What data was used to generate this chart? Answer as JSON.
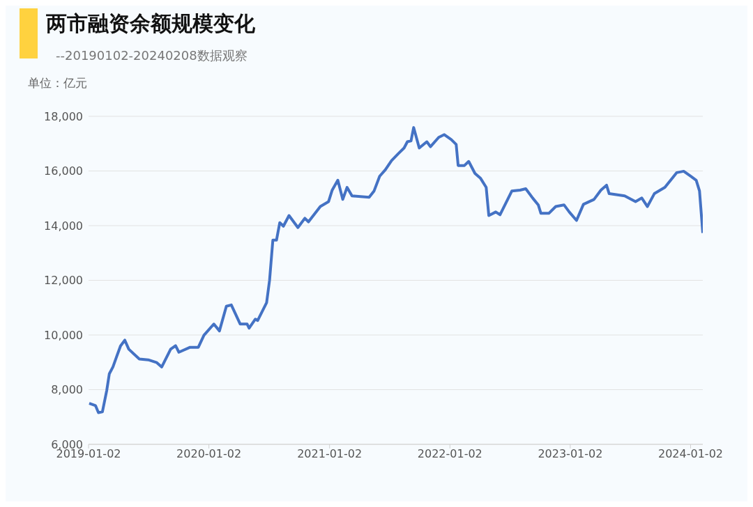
{
  "chart_data": {
    "type": "line",
    "title": "两市融资余额规模变化",
    "subtitle": "--20190102-20240208数据观察",
    "ylabel": "单位：亿元",
    "x": [
      "2019-01-04",
      "2019-01-23",
      "2019-02-01",
      "2019-02-13",
      "2019-02-26",
      "2019-03-06",
      "2019-03-17",
      "2019-03-27",
      "2019-04-09",
      "2019-04-22",
      "2019-05-04",
      "2019-06-05",
      "2019-07-02",
      "2019-07-28",
      "2019-08-12",
      "2019-09-08",
      "2019-09-23",
      "2019-10-03",
      "2019-11-06",
      "2019-12-01",
      "2019-12-18",
      "2020-01-17",
      "2020-02-03",
      "2020-02-24",
      "2020-03-10",
      "2020-04-06",
      "2020-04-27",
      "2020-05-03",
      "2020-05-22",
      "2020-05-29",
      "2020-06-25",
      "2020-07-04",
      "2020-07-14",
      "2020-07-25",
      "2020-08-04",
      "2020-08-15",
      "2020-09-01",
      "2020-09-28",
      "2020-10-19",
      "2020-10-30",
      "2020-12-05",
      "2020-12-30",
      "2021-01-10",
      "2021-01-27",
      "2021-02-11",
      "2021-02-24",
      "2021-03-11",
      "2021-05-02",
      "2021-05-17",
      "2021-06-03",
      "2021-06-20",
      "2021-07-09",
      "2021-07-30",
      "2021-08-16",
      "2021-08-26",
      "2021-09-06",
      "2021-09-14",
      "2021-10-01",
      "2021-10-24",
      "2021-11-04",
      "2021-11-29",
      "2021-12-16",
      "2022-01-06",
      "2022-01-21",
      "2022-01-27",
      "2022-02-15",
      "2022-02-28",
      "2022-03-19",
      "2022-04-05",
      "2022-04-22",
      "2022-04-30",
      "2022-05-21",
      "2022-06-03",
      "2022-07-09",
      "2022-08-03",
      "2022-08-20",
      "2022-09-10",
      "2022-09-27",
      "2022-10-05",
      "2022-10-29",
      "2022-11-19",
      "2022-12-14",
      "2022-12-30",
      "2023-01-21",
      "2023-02-11",
      "2023-03-15",
      "2023-04-05",
      "2023-04-22",
      "2023-04-30",
      "2023-06-16",
      "2023-07-19",
      "2023-08-07",
      "2023-08-24",
      "2023-09-14",
      "2023-10-16",
      "2023-11-21",
      "2023-12-12",
      "2024-01-02",
      "2024-01-19",
      "2024-01-29",
      "2024-02-08"
    ],
    "series": [
      {
        "color": "#4472c4",
        "values": [
          7500,
          7420,
          7160,
          7190,
          7960,
          8580,
          8830,
          9170,
          9600,
          9810,
          9480,
          9120,
          9090,
          8990,
          8830,
          9480,
          9610,
          9370,
          9550,
          9550,
          9990,
          10400,
          10150,
          11050,
          11100,
          10400,
          10400,
          10250,
          10580,
          10530,
          11180,
          12000,
          13470,
          13470,
          14110,
          13980,
          14370,
          13930,
          14270,
          14140,
          14700,
          14880,
          15300,
          15660,
          14960,
          15400,
          15090,
          15040,
          15270,
          15810,
          16040,
          16380,
          16640,
          16840,
          17070,
          17100,
          17590,
          16840,
          17070,
          16890,
          17230,
          17330,
          17150,
          16970,
          16200,
          16200,
          16350,
          15910,
          15730,
          15400,
          14370,
          14500,
          14400,
          15270,
          15300,
          15350,
          15010,
          14760,
          14450,
          14450,
          14700,
          14760,
          14500,
          14190,
          14780,
          14960,
          15300,
          15480,
          15170,
          15090,
          14880,
          15010,
          14700,
          15170,
          15400,
          15940,
          15990,
          15810,
          15660,
          15270,
          13730
        ]
      }
    ],
    "xlim": [
      "2019-01-02",
      "2024-02-08"
    ],
    "xticks": [
      "2019-01-02",
      "2020-01-02",
      "2021-01-02",
      "2022-01-02",
      "2023-01-02",
      "2024-01-02"
    ],
    "ylim": [
      6000,
      18000
    ],
    "yticks": [
      {
        "value": 6000,
        "label": "6,000"
      },
      {
        "value": 8000,
        "label": "8,000"
      },
      {
        "value": 10000,
        "label": "10,000"
      },
      {
        "value": 12000,
        "label": "12,000"
      },
      {
        "value": 14000,
        "label": "14,000"
      },
      {
        "value": 16000,
        "label": "16,000"
      },
      {
        "value": 18000,
        "label": "18,000"
      }
    ],
    "grid": "y",
    "marker": "none",
    "line_style": "solid"
  }
}
